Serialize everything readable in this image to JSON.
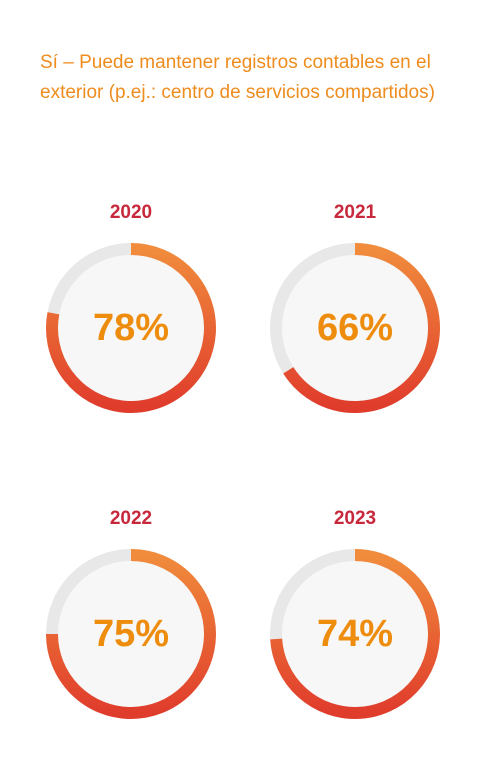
{
  "title": "Sí – Puede mantener registros contables en el exterior (p.ej.: centro de servicios compartidos)",
  "colors": {
    "title": "#ee8c1e",
    "year": "#c8283c",
    "value": "#ee8c0e",
    "track": "#e8e8e8",
    "inner": "#f6f7f6",
    "arc_start": "#f08c3c",
    "arc_end": "#e03c2c"
  },
  "chart_data": [
    {
      "type": "pie",
      "variant": "donut",
      "title": "2020",
      "value": 78,
      "value_label": "78%"
    },
    {
      "type": "pie",
      "variant": "donut",
      "title": "2021",
      "value": 66,
      "value_label": "66%"
    },
    {
      "type": "pie",
      "variant": "donut",
      "title": "2022",
      "value": 75,
      "value_label": "75%"
    },
    {
      "type": "pie",
      "variant": "donut",
      "title": "2023",
      "value": 74,
      "value_label": "74%"
    }
  ]
}
